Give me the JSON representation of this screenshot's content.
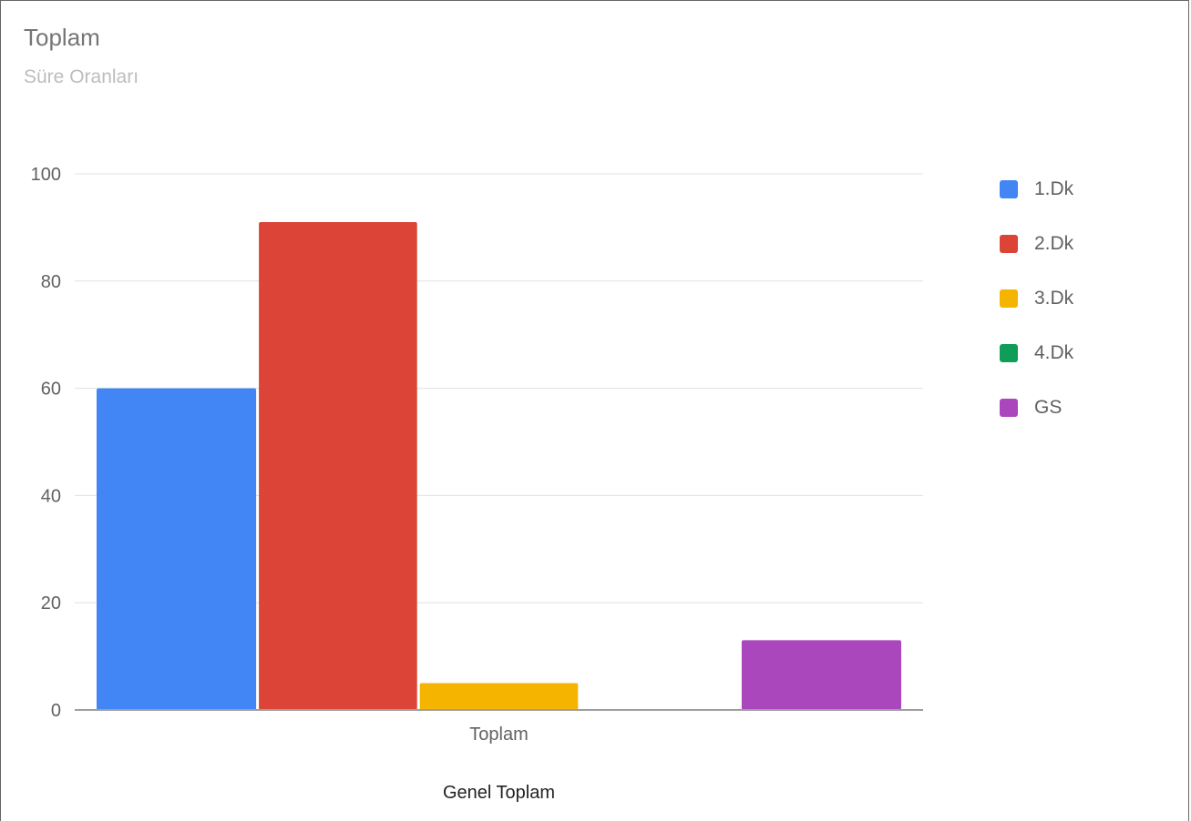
{
  "chart_data": {
    "type": "bar",
    "title": "Toplam",
    "subtitle": "Süre Oranları",
    "categories": [
      "Toplam"
    ],
    "xlabel": "Genel Toplam",
    "ylabel": "",
    "ylim": [
      0,
      100
    ],
    "yticks": [
      0,
      20,
      40,
      60,
      80,
      100
    ],
    "grid": true,
    "legend_position": "right",
    "series": [
      {
        "name": "1.Dk",
        "color": "#4285f4",
        "values": [
          60
        ]
      },
      {
        "name": "2.Dk",
        "color": "#db4437",
        "values": [
          91
        ]
      },
      {
        "name": "3.Dk",
        "color": "#f4b400",
        "values": [
          5
        ]
      },
      {
        "name": "4.Dk",
        "color": "#0f9d58",
        "values": [
          0
        ]
      },
      {
        "name": "GS",
        "color": "#ab47bc",
        "values": [
          13
        ]
      }
    ]
  }
}
